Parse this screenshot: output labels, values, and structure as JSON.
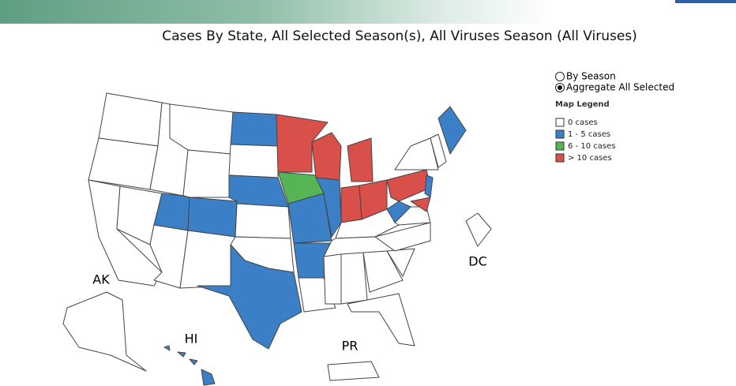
{
  "header": {
    "title": "Cases By State, All Selected Season(s), All Viruses Season (All Viruses)"
  },
  "controls": {
    "options": [
      {
        "label": "By Season",
        "selected": false
      },
      {
        "label": "Aggregate All Selected",
        "selected": true
      }
    ]
  },
  "legend": {
    "title": "Map Legend",
    "items": [
      {
        "label": "0 cases",
        "color": "#ffffff"
      },
      {
        "label": "1 - 5 cases",
        "color": "#3b80c6"
      },
      {
        "label": "6 - 10 cases",
        "color": "#55b555"
      },
      {
        "label": "> 10 cases",
        "color": "#d9504a"
      }
    ]
  },
  "map": {
    "labels": [
      "AK",
      "HI",
      "PR",
      "DC"
    ]
  }
}
